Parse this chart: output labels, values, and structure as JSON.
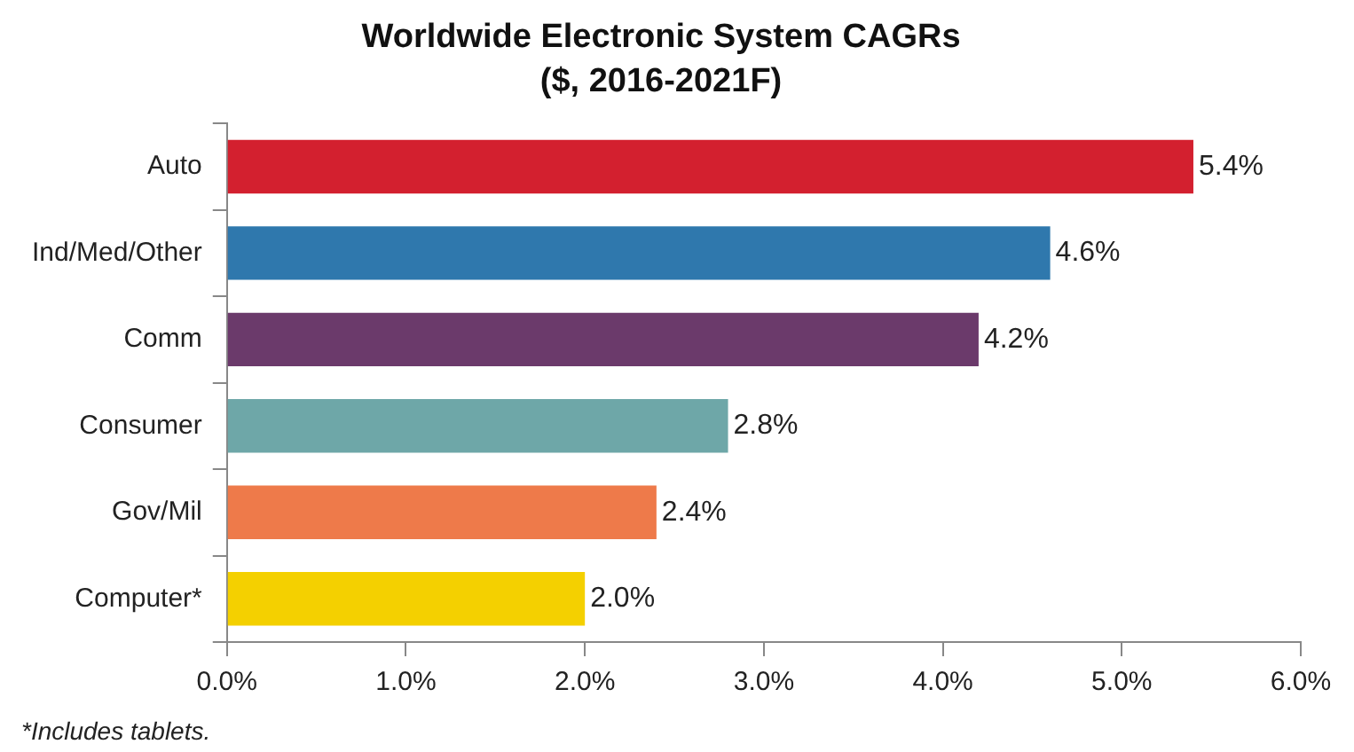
{
  "chart_data": {
    "type": "bar",
    "orientation": "horizontal",
    "title": "Worldwide Electronic System CAGRs",
    "subtitle": "($, 2016-2021F)",
    "categories": [
      "Auto",
      "Ind/Med/Other",
      "Comm",
      "Consumer",
      "Gov/Mil",
      "Computer*"
    ],
    "values": [
      5.4,
      4.6,
      4.2,
      2.8,
      2.4,
      2.0
    ],
    "colors": [
      "#d3202f",
      "#2f78ad",
      "#6b3a6b",
      "#6ea7a8",
      "#ee7a4a",
      "#f4d000"
    ],
    "value_labels": [
      "5.4%",
      "4.6%",
      "4.2%",
      "2.8%",
      "2.4%",
      "2.0%"
    ],
    "xlim": [
      0,
      6
    ],
    "xticks": [
      {
        "value": 0,
        "label": "0.0%"
      },
      {
        "value": 1,
        "label": "1.0%"
      },
      {
        "value": 2,
        "label": "2.0%"
      },
      {
        "value": 3,
        "label": "3.0%"
      },
      {
        "value": 4,
        "label": "4.0%"
      },
      {
        "value": 5,
        "label": "5.0%"
      },
      {
        "value": 6,
        "label": "6.0%"
      }
    ],
    "grid": false,
    "legend": false,
    "annotations": [
      "*Includes tablets."
    ]
  }
}
